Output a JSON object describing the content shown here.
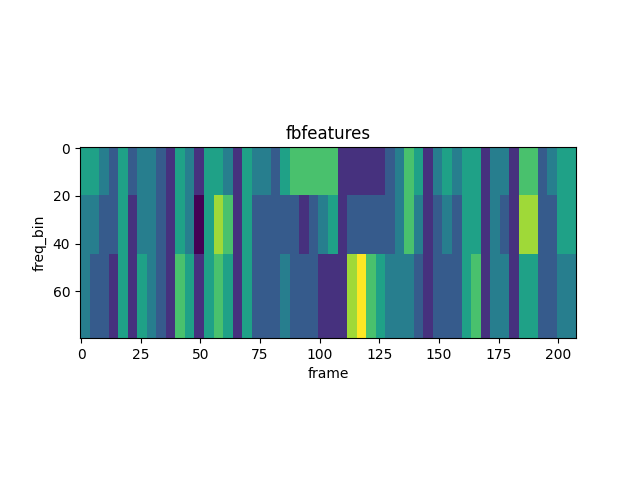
{
  "chart_data": {
    "type": "heatmap",
    "title": "fbfeatures",
    "x_label": "frame",
    "y_label": "freq_bin",
    "xlim": [
      -0.5,
      207.5
    ],
    "ylim": [
      79.5,
      -0.5
    ],
    "xticks": [
      0,
      25,
      50,
      75,
      100,
      125,
      150,
      175,
      200
    ],
    "yticks": [
      0,
      20,
      40,
      60
    ],
    "cells": [
      [
        6,
        6,
        5,
        4,
        6,
        4,
        5,
        5,
        4,
        3,
        6,
        5,
        3,
        6,
        6,
        5,
        3,
        6,
        5,
        5,
        4,
        6,
        7,
        7,
        7,
        7,
        7,
        3,
        3,
        3,
        3,
        3,
        4,
        5,
        7,
        6,
        3,
        5,
        6,
        5,
        6,
        6,
        3,
        5,
        5,
        3,
        7,
        7,
        4,
        5,
        6,
        6
      ],
      [
        6,
        6,
        5,
        4,
        6,
        4,
        5,
        5,
        4,
        3,
        6,
        5,
        3,
        6,
        6,
        5,
        3,
        6,
        5,
        5,
        4,
        6,
        7,
        7,
        7,
        7,
        7,
        3,
        3,
        3,
        3,
        3,
        4,
        5,
        7,
        6,
        3,
        5,
        6,
        5,
        6,
        6,
        3,
        5,
        5,
        3,
        7,
        7,
        4,
        5,
        6,
        6
      ],
      [
        6,
        6,
        5,
        4,
        6,
        4,
        5,
        5,
        4,
        3,
        6,
        5,
        3,
        6,
        6,
        5,
        3,
        6,
        5,
        5,
        4,
        6,
        7,
        7,
        7,
        7,
        7,
        3,
        3,
        3,
        3,
        3,
        4,
        5,
        7,
        6,
        3,
        5,
        6,
        5,
        6,
        6,
        3,
        5,
        5,
        3,
        7,
        7,
        4,
        5,
        6,
        6
      ],
      [
        6,
        6,
        5,
        4,
        6,
        4,
        5,
        5,
        4,
        3,
        6,
        5,
        3,
        6,
        6,
        5,
        3,
        6,
        5,
        5,
        4,
        6,
        7,
        7,
        7,
        7,
        7,
        3,
        3,
        3,
        3,
        3,
        4,
        5,
        7,
        6,
        3,
        5,
        6,
        5,
        6,
        6,
        3,
        5,
        5,
        3,
        7,
        7,
        4,
        5,
        6,
        6
      ],
      [
        5,
        5,
        4,
        4,
        6,
        3,
        5,
        5,
        4,
        3,
        6,
        5,
        2,
        6,
        8,
        7,
        3,
        6,
        4,
        4,
        4,
        4,
        4,
        3,
        4,
        5,
        6,
        3,
        4,
        4,
        4,
        4,
        4,
        5,
        7,
        5,
        3,
        4,
        5,
        4,
        6,
        6,
        3,
        5,
        4,
        3,
        8,
        8,
        4,
        4,
        6,
        6
      ],
      [
        5,
        5,
        4,
        4,
        6,
        3,
        5,
        5,
        4,
        3,
        6,
        5,
        2,
        6,
        8,
        7,
        3,
        6,
        4,
        4,
        4,
        4,
        4,
        3,
        4,
        5,
        6,
        3,
        4,
        4,
        4,
        4,
        4,
        5,
        7,
        5,
        3,
        4,
        5,
        4,
        6,
        6,
        3,
        5,
        4,
        3,
        8,
        8,
        4,
        4,
        6,
        6
      ],
      [
        5,
        5,
        4,
        4,
        6,
        3,
        5,
        5,
        4,
        3,
        6,
        5,
        2,
        6,
        8,
        7,
        3,
        6,
        4,
        4,
        4,
        4,
        4,
        3,
        4,
        5,
        6,
        3,
        4,
        4,
        4,
        4,
        4,
        5,
        7,
        5,
        3,
        4,
        5,
        4,
        6,
        6,
        3,
        5,
        4,
        3,
        8,
        8,
        4,
        4,
        6,
        6
      ],
      [
        5,
        5,
        4,
        4,
        6,
        3,
        5,
        5,
        4,
        3,
        6,
        5,
        2,
        6,
        8,
        7,
        3,
        6,
        4,
        4,
        4,
        4,
        4,
        3,
        4,
        5,
        6,
        3,
        4,
        4,
        4,
        4,
        4,
        5,
        7,
        5,
        3,
        4,
        5,
        4,
        6,
        6,
        3,
        5,
        4,
        3,
        8,
        8,
        4,
        4,
        6,
        6
      ],
      [
        5,
        5,
        4,
        4,
        6,
        3,
        5,
        5,
        4,
        3,
        6,
        5,
        2,
        6,
        8,
        7,
        3,
        6,
        4,
        4,
        4,
        4,
        4,
        3,
        4,
        5,
        6,
        3,
        4,
        4,
        4,
        4,
        4,
        5,
        7,
        5,
        3,
        4,
        5,
        4,
        6,
        6,
        3,
        5,
        4,
        3,
        8,
        8,
        4,
        4,
        6,
        6
      ],
      [
        5,
        4,
        4,
        3,
        6,
        3,
        6,
        5,
        4,
        3,
        7,
        6,
        3,
        6,
        7,
        6,
        3,
        6,
        4,
        4,
        4,
        5,
        4,
        4,
        4,
        3,
        3,
        3,
        8,
        9,
        7,
        6,
        5,
        5,
        5,
        4,
        3,
        4,
        4,
        4,
        6,
        7,
        3,
        5,
        5,
        3,
        6,
        6,
        4,
        4,
        5,
        5
      ],
      [
        5,
        4,
        4,
        3,
        6,
        3,
        6,
        5,
        4,
        3,
        7,
        6,
        3,
        6,
        7,
        6,
        3,
        6,
        4,
        4,
        4,
        5,
        4,
        4,
        4,
        3,
        3,
        3,
        8,
        9,
        7,
        6,
        5,
        5,
        5,
        4,
        3,
        4,
        4,
        4,
        6,
        7,
        3,
        5,
        5,
        3,
        6,
        6,
        4,
        4,
        5,
        5
      ],
      [
        5,
        4,
        4,
        3,
        6,
        3,
        6,
        5,
        4,
        3,
        7,
        6,
        3,
        6,
        7,
        6,
        3,
        6,
        4,
        4,
        4,
        5,
        4,
        4,
        4,
        3,
        3,
        3,
        8,
        9,
        7,
        6,
        5,
        5,
        5,
        4,
        3,
        4,
        4,
        4,
        6,
        7,
        3,
        5,
        5,
        3,
        6,
        6,
        4,
        4,
        5,
        5
      ],
      [
        5,
        4,
        4,
        3,
        6,
        3,
        6,
        5,
        4,
        3,
        7,
        6,
        3,
        6,
        7,
        6,
        3,
        6,
        4,
        4,
        4,
        5,
        4,
        4,
        4,
        3,
        3,
        3,
        8,
        9,
        7,
        6,
        5,
        5,
        5,
        4,
        3,
        4,
        4,
        4,
        6,
        7,
        3,
        5,
        5,
        3,
        6,
        6,
        4,
        4,
        5,
        5
      ],
      [
        5,
        4,
        4,
        3,
        6,
        3,
        6,
        5,
        4,
        3,
        7,
        6,
        3,
        6,
        7,
        6,
        3,
        6,
        4,
        4,
        4,
        5,
        4,
        4,
        4,
        3,
        3,
        3,
        8,
        9,
        7,
        6,
        5,
        5,
        5,
        4,
        3,
        4,
        4,
        4,
        6,
        7,
        3,
        5,
        5,
        3,
        6,
        6,
        4,
        4,
        5,
        5
      ],
      [
        5,
        4,
        4,
        3,
        6,
        3,
        6,
        5,
        4,
        3,
        7,
        6,
        3,
        6,
        7,
        6,
        3,
        6,
        4,
        4,
        4,
        5,
        4,
        4,
        4,
        3,
        3,
        3,
        8,
        9,
        7,
        6,
        5,
        5,
        5,
        4,
        3,
        4,
        4,
        4,
        6,
        7,
        3,
        5,
        5,
        3,
        6,
        6,
        4,
        4,
        5,
        5
      ],
      [
        5,
        4,
        4,
        3,
        6,
        3,
        6,
        5,
        4,
        3,
        7,
        6,
        3,
        6,
        7,
        6,
        3,
        6,
        4,
        4,
        4,
        5,
        4,
        4,
        4,
        3,
        3,
        3,
        8,
        9,
        7,
        6,
        5,
        5,
        5,
        4,
        3,
        4,
        4,
        4,
        6,
        7,
        3,
        5,
        5,
        3,
        6,
        6,
        4,
        4,
        5,
        5
      ]
    ]
  }
}
